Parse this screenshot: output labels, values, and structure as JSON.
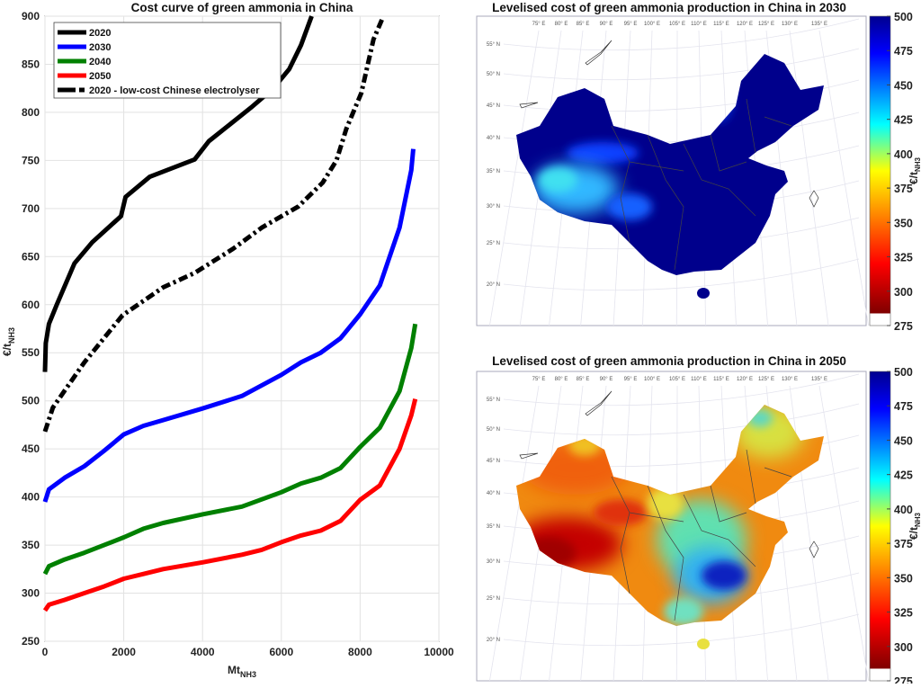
{
  "chart_data": [
    {
      "type": "line",
      "title": "Cost curve of green ammonia in China",
      "xlabel": {
        "text": "Mt",
        "subscript": "NH3"
      },
      "ylabel": {
        "text": "€/t",
        "subscript": "NH3"
      },
      "xlim": [
        0,
        10000
      ],
      "ylim": [
        250,
        900
      ],
      "xticks": [
        0,
        2000,
        4000,
        6000,
        8000,
        10000
      ],
      "yticks": [
        250,
        300,
        350,
        400,
        450,
        500,
        550,
        600,
        650,
        700,
        750,
        800,
        850,
        900
      ],
      "grid": true,
      "legend_position": "top-left",
      "series": [
        {
          "name": "2020",
          "color": "#000000",
          "style": "solid",
          "points": [
            [
              0,
              530
            ],
            [
              20,
              560
            ],
            [
              100,
              580
            ],
            [
              300,
              600
            ],
            [
              750,
              643
            ],
            [
              1200,
              665
            ],
            [
              1930,
              692
            ],
            [
              2045,
              712
            ],
            [
              2660,
              733
            ],
            [
              3800,
              751
            ],
            [
              4160,
              770
            ],
            [
              5230,
              805
            ],
            [
              5800,
              825
            ],
            [
              6200,
              845
            ],
            [
              6500,
              870
            ],
            [
              6770,
              900
            ]
          ]
        },
        {
          "name": "2030",
          "color": "#0000ff",
          "style": "solid",
          "points": [
            [
              0,
              395
            ],
            [
              100,
              408
            ],
            [
              500,
              420
            ],
            [
              1000,
              432
            ],
            [
              1500,
              448
            ],
            [
              2000,
              465
            ],
            [
              2500,
              474
            ],
            [
              3000,
              480
            ],
            [
              4000,
              492
            ],
            [
              5000,
              505
            ],
            [
              6000,
              527
            ],
            [
              6500,
              540
            ],
            [
              7000,
              550
            ],
            [
              7500,
              565
            ],
            [
              8000,
              590
            ],
            [
              8500,
              620
            ],
            [
              9000,
              680
            ],
            [
              9300,
              740
            ],
            [
              9350,
              762
            ]
          ]
        },
        {
          "name": "2040",
          "color": "#008000",
          "style": "solid",
          "points": [
            [
              0,
              320
            ],
            [
              100,
              328
            ],
            [
              500,
              335
            ],
            [
              1000,
              342
            ],
            [
              1500,
              350
            ],
            [
              2000,
              358
            ],
            [
              2500,
              367
            ],
            [
              3000,
              373
            ],
            [
              4000,
              382
            ],
            [
              5000,
              390
            ],
            [
              6000,
              405
            ],
            [
              6500,
              414
            ],
            [
              7000,
              420
            ],
            [
              7500,
              430
            ],
            [
              8000,
              452
            ],
            [
              8500,
              472
            ],
            [
              9000,
              510
            ],
            [
              9300,
              555
            ],
            [
              9400,
              580
            ]
          ]
        },
        {
          "name": "2050",
          "color": "#ff0000",
          "style": "solid",
          "points": [
            [
              0,
              282
            ],
            [
              100,
              288
            ],
            [
              500,
              293
            ],
            [
              1000,
              300
            ],
            [
              1500,
              307
            ],
            [
              2000,
              315
            ],
            [
              2500,
              320
            ],
            [
              3000,
              325
            ],
            [
              4000,
              332
            ],
            [
              5000,
              340
            ],
            [
              5500,
              345
            ],
            [
              6000,
              353
            ],
            [
              6500,
              360
            ],
            [
              7000,
              365
            ],
            [
              7500,
              375
            ],
            [
              8000,
              397
            ],
            [
              8500,
              412
            ],
            [
              9000,
              450
            ],
            [
              9300,
              485
            ],
            [
              9400,
              502
            ]
          ]
        },
        {
          "name": "2020 - low-cost Chinese electrolyser",
          "color": "#000000",
          "style": "dashed",
          "points": [
            [
              0,
              468
            ],
            [
              200,
              493
            ],
            [
              1000,
              540
            ],
            [
              1970,
              589
            ],
            [
              3000,
              618
            ],
            [
              3800,
              633
            ],
            [
              4770,
              658
            ],
            [
              5500,
              680
            ],
            [
              6430,
              702
            ],
            [
              7050,
              727
            ],
            [
              7400,
              750
            ],
            [
              7650,
              783
            ],
            [
              8030,
              820
            ],
            [
              8340,
              876
            ],
            [
              8570,
              898
            ]
          ]
        }
      ]
    },
    {
      "type": "heatmap",
      "title": "Levelised cost of green ammonia production in China in 2030",
      "colorbar": {
        "label": {
          "text": "€/t",
          "subscript": "NH3"
        },
        "range": [
          275,
          500
        ],
        "ticks": [
          500,
          475,
          450,
          425,
          400,
          375,
          350,
          325,
          300,
          275
        ],
        "colormap": "jet"
      },
      "summary": "mostly ≥500 (dark blue); lower (~400-425) in western Tibet/Qinghai"
    },
    {
      "type": "heatmap",
      "title": "Levelised cost of green ammonia production in China in 2050",
      "colorbar": {
        "label": {
          "text": "€/t",
          "subscript": "NH3"
        },
        "range": [
          275,
          500
        ],
        "ticks": [
          500,
          475,
          450,
          425,
          400,
          375,
          350,
          325,
          300,
          275
        ],
        "colormap": "jet"
      },
      "summary": "lowest (~280-300) in Tibet, ~325-340 north-west and north, ~375-425 east, ~475-500 in Hunan/Jiangxi"
    }
  ],
  "map_labels": {
    "longitudes": [
      "75° E",
      "80° E",
      "85° E",
      "90° E",
      "95° E",
      "100° E",
      "105° E",
      "110° E",
      "115° E",
      "120° E",
      "125° E",
      "130° E",
      "135° E"
    ],
    "latitudes": [
      "55° N",
      "50° N",
      "45° N",
      "40° N",
      "35° N",
      "30° N",
      "25° N",
      "20° N"
    ]
  },
  "colors": {
    "map2030_base": "#00008c",
    "jet_low": "#800000",
    "jet_high": "#00008f"
  }
}
